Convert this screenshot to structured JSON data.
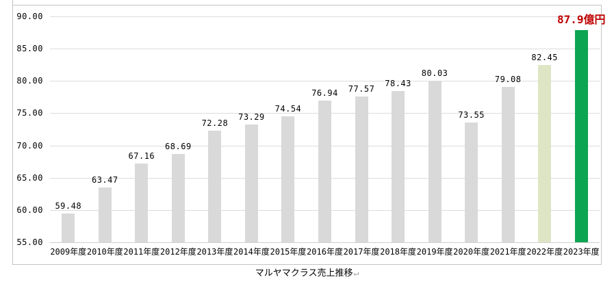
{
  "chart_data": {
    "type": "bar",
    "title": "マルヤマクラス売上推移",
    "categories": [
      "2009年度",
      "2010年度",
      "2011年度",
      "2012年度",
      "2013年度",
      "2014年度",
      "2015年度",
      "2016年度",
      "2017年度",
      "2018年度",
      "2019年度",
      "2020年度",
      "2021年度",
      "2022年度",
      "2023年度"
    ],
    "values": [
      59.48,
      63.47,
      67.16,
      68.69,
      72.28,
      73.29,
      74.54,
      76.94,
      77.57,
      78.43,
      80.03,
      73.55,
      79.08,
      82.45,
      87.9
    ],
    "data_labels": [
      "59.48",
      "63.47",
      "67.16",
      "68.69",
      "72.28",
      "73.29",
      "74.54",
      "76.94",
      "77.57",
      "78.43",
      "80.03",
      "73.55",
      "79.08",
      "82.45",
      "87.9億円"
    ],
    "ylim": [
      55,
      90
    ],
    "ytick_values": [
      55,
      60,
      65,
      70,
      75,
      80,
      85,
      90
    ],
    "ytick_labels": [
      "55.00",
      "60.00",
      "65.00",
      "70.00",
      "75.00",
      "80.00",
      "85.00",
      "90.00"
    ],
    "grid": true,
    "legend": "none",
    "xlabel": "",
    "ylabel": ""
  },
  "caption": {
    "text": "マルヤマクラス売上推移",
    "return_mark": "↵"
  },
  "colors": {
    "bar_default": "#d9d9d9",
    "bar_2022": "#dee5c5",
    "bar_2023": "#0ca551",
    "highlight_label": "#c00000",
    "gridline": "#dcdcdc",
    "axis_line": "#cfcfcf",
    "chart_border": "#c3c3c3"
  }
}
